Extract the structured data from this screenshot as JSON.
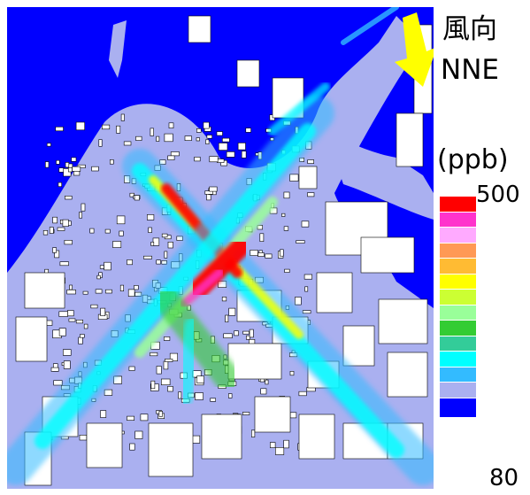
{
  "labels": {
    "wind_title": "風向",
    "wind_direction": "NNE",
    "unit": "(ppb)",
    "scale_max": "500",
    "scale_min": "80"
  },
  "colors": {
    "background_high": "#0000ff",
    "low_concentration": "#aab0f0",
    "buildings": "#ffffff",
    "building_outline": "#000000",
    "wind_arrow": "#ffff00"
  },
  "legend": {
    "colors": [
      "#ff0000",
      "#ff33cc",
      "#ffaaff",
      "#ff9955",
      "#ffbb33",
      "#ffff00",
      "#ccff33",
      "#99ff99",
      "#33cc33",
      "#33cc99",
      "#00ffff",
      "#33bbff",
      "#aab0f0",
      "#0000ff"
    ]
  },
  "icons": {
    "wind_arrow": "arrow-down-left-icon"
  }
}
